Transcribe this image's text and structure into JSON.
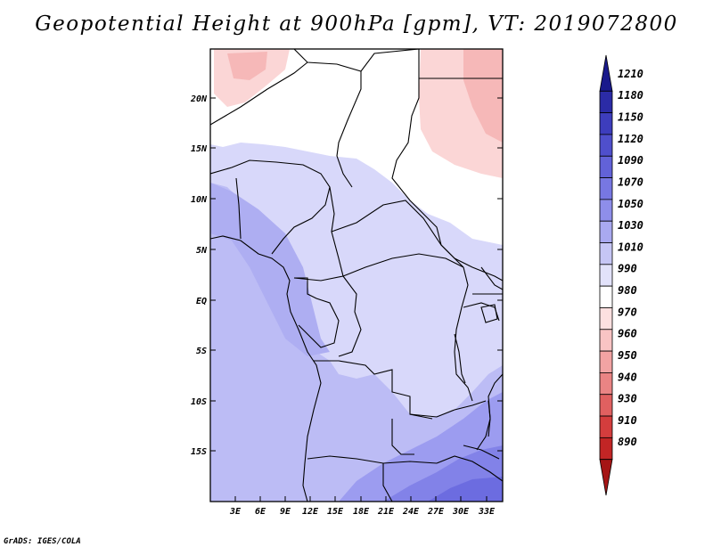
{
  "title": "Geopotential Height at 900hPa [gpm], VT: 2019072800",
  "credit": "GrADS: IGES/COLA",
  "map": {
    "lat_labels": [
      "20N",
      "15N",
      "10N",
      "5N",
      "EQ",
      "5S",
      "10S",
      "15S"
    ],
    "lon_labels": [
      "3E",
      "6E",
      "9E",
      "12E",
      "15E",
      "18E",
      "21E",
      "24E",
      "27E",
      "30E",
      "33E"
    ],
    "extent": {
      "lon": [
        0,
        35
      ],
      "lat": [
        -20,
        25
      ]
    }
  },
  "colorbar": {
    "levels": [
      "1210",
      "1180",
      "1150",
      "1120",
      "1090",
      "1070",
      "1050",
      "1030",
      "1010",
      "990",
      "980",
      "970",
      "960",
      "950",
      "940",
      "930",
      "910",
      "890"
    ],
    "colors": [
      "#1a1a8c",
      "#2b2ba6",
      "#3d3dbd",
      "#4f4fcc",
      "#6262d8",
      "#7777e2",
      "#8e8eea",
      "#a9a9f0",
      "#c6c6f5",
      "#e2e2fa",
      "#ffffff",
      "#fde0e0",
      "#f9c4c4",
      "#f2a3a3",
      "#ea8484",
      "#e06060",
      "#d43d3d",
      "#c22525",
      "#a51515"
    ]
  },
  "field_colors": {
    "very_high": "#6c6ce0",
    "high": "#9c9cf0",
    "mid": "#bcbcf5",
    "low": "#d8d8fa",
    "neutral": "#ffffff",
    "pink_light": "#fbd6d6",
    "pink": "#f6b8b8"
  }
}
